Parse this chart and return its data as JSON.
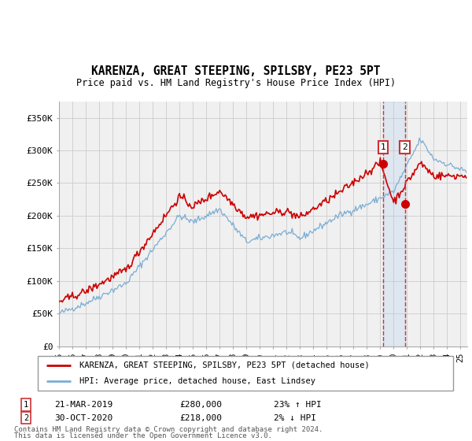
{
  "title": "KARENZA, GREAT STEEPING, SPILSBY, PE23 5PT",
  "subtitle": "Price paid vs. HM Land Registry's House Price Index (HPI)",
  "ylabel_ticks": [
    "£0",
    "£50K",
    "£100K",
    "£150K",
    "£200K",
    "£250K",
    "£300K",
    "£350K"
  ],
  "ytick_values": [
    0,
    50000,
    100000,
    150000,
    200000,
    250000,
    300000,
    350000
  ],
  "ylim": [
    0,
    375000
  ],
  "xlim_start": 1995.0,
  "xlim_end": 2025.5,
  "sale1_x": 2019.22,
  "sale1_y": 280000,
  "sale2_x": 2020.83,
  "sale2_y": 218000,
  "sale1_date": "21-MAR-2019",
  "sale1_price": "£280,000",
  "sale1_hpi": "23% ↑ HPI",
  "sale2_date": "30-OCT-2020",
  "sale2_price": "£218,000",
  "sale2_hpi": "2% ↓ HPI",
  "legend_line1": "KARENZA, GREAT STEEPING, SPILSBY, PE23 5PT (detached house)",
  "legend_line2": "HPI: Average price, detached house, East Lindsey",
  "footer1": "Contains HM Land Registry data © Crown copyright and database right 2024.",
  "footer2": "This data is licensed under the Open Government Licence v3.0.",
  "red_color": "#cc0000",
  "blue_color": "#7aadd4",
  "grid_color": "#cccccc",
  "bg_color": "#f0f0f0",
  "sale_box_color": "#cc3333",
  "dashed_color": "#cc3333",
  "shade_color": "#ddeeff"
}
